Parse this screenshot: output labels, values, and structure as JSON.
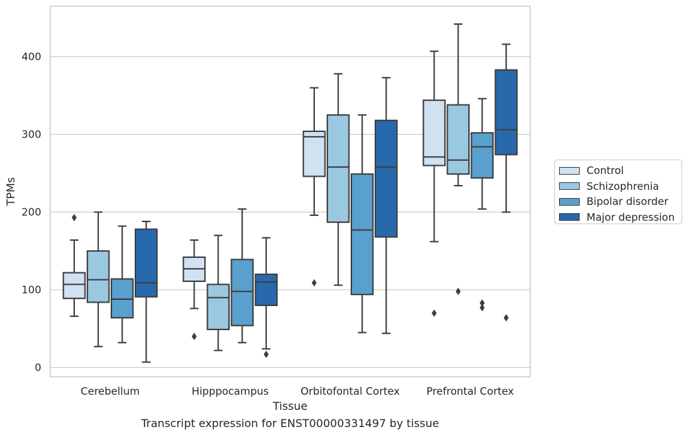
{
  "chart_data": {
    "type": "box",
    "xlabel": "Tissue",
    "ylabel": "TPMs",
    "caption": "Transcript expression for ENST00000331497 by tissue",
    "ylim": [
      -12,
      465
    ],
    "yticks": [
      0,
      100,
      200,
      300,
      400
    ],
    "grid": "horizontal",
    "legend_position": "right",
    "categories": [
      "Cerebellum",
      "Hipppocampus",
      "Orbitofontal Cortex",
      "Prefrontal Cortex"
    ],
    "series": [
      {
        "name": "Control",
        "color": "#d0e1f2",
        "boxes": [
          {
            "whislo": 66,
            "q1": 89,
            "med": 107,
            "q3": 122,
            "whishi": 164,
            "fliers": [
              193
            ]
          },
          {
            "whislo": 76,
            "q1": 111,
            "med": 127,
            "q3": 142,
            "whishi": 164,
            "fliers": [
              40
            ]
          },
          {
            "whislo": 196,
            "q1": 246,
            "med": 297,
            "q3": 304,
            "whishi": 360,
            "fliers": [
              109
            ]
          },
          {
            "whislo": 162,
            "q1": 260,
            "med": 271,
            "q3": 344,
            "whishi": 407,
            "fliers": [
              70
            ]
          }
        ]
      },
      {
        "name": "Schizophrenia",
        "color": "#9ac8e0",
        "boxes": [
          {
            "whislo": 27,
            "q1": 84,
            "med": 113,
            "q3": 150,
            "whishi": 200,
            "fliers": []
          },
          {
            "whislo": 22,
            "q1": 49,
            "med": 90,
            "q3": 107,
            "whishi": 170,
            "fliers": []
          },
          {
            "whislo": 106,
            "q1": 187,
            "med": 258,
            "q3": 325,
            "whishi": 378,
            "fliers": []
          },
          {
            "whislo": 234,
            "q1": 249,
            "med": 267,
            "q3": 338,
            "whishi": 442,
            "fliers": [
              98
            ]
          }
        ]
      },
      {
        "name": "Bipolar disorder",
        "color": "#5aa0ce",
        "boxes": [
          {
            "whislo": 32,
            "q1": 64,
            "med": 88,
            "q3": 114,
            "whishi": 182,
            "fliers": []
          },
          {
            "whislo": 32,
            "q1": 54,
            "med": 98,
            "q3": 139,
            "whishi": 204,
            "fliers": []
          },
          {
            "whislo": 45,
            "q1": 94,
            "med": 177,
            "q3": 249,
            "whishi": 325,
            "fliers": []
          },
          {
            "whislo": 204,
            "q1": 244,
            "med": 284,
            "q3": 302,
            "whishi": 346,
            "fliers": [
              77,
              83
            ]
          }
        ]
      },
      {
        "name": "Major depression",
        "color": "#2869ac",
        "boxes": [
          {
            "whislo": 7,
            "q1": 91,
            "med": 109,
            "q3": 178,
            "whishi": 188,
            "fliers": []
          },
          {
            "whislo": 24,
            "q1": 80,
            "med": 110,
            "q3": 120,
            "whishi": 167,
            "fliers": [
              17
            ]
          },
          {
            "whislo": 44,
            "q1": 168,
            "med": 258,
            "q3": 318,
            "whishi": 373,
            "fliers": []
          },
          {
            "whislo": 200,
            "q1": 274,
            "med": 306,
            "q3": 383,
            "whishi": 416,
            "fliers": [
              64
            ]
          }
        ]
      }
    ]
  }
}
